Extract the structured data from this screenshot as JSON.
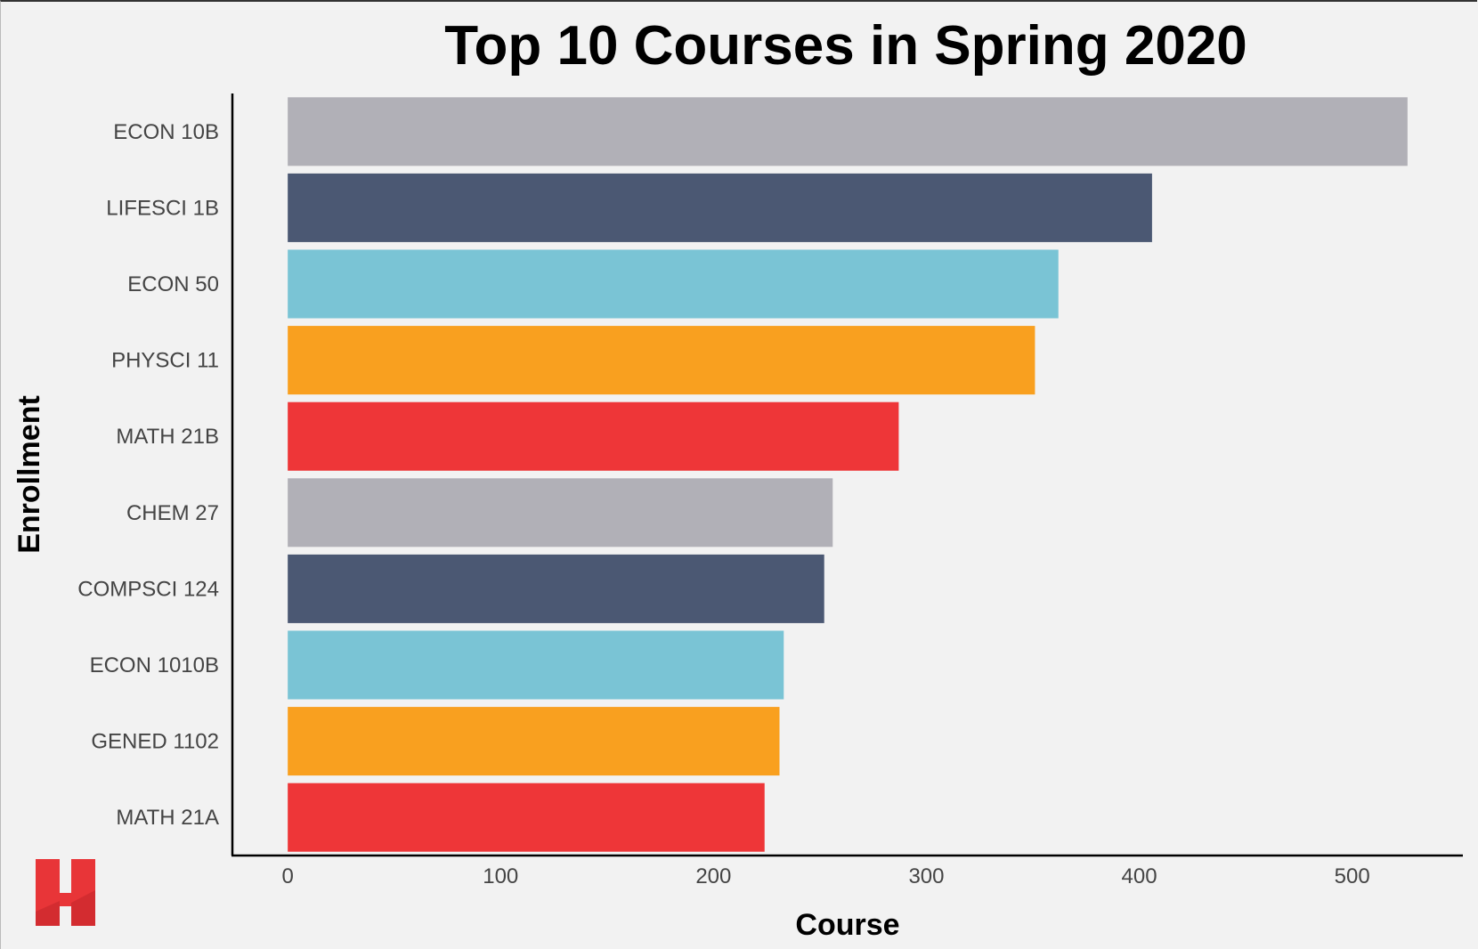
{
  "chart_data": {
    "type": "bar",
    "orientation": "horizontal",
    "title": "Top 10 Courses in Spring 2020",
    "xlabel": "Course",
    "ylabel": "Enrollment",
    "categories": [
      "ECON 10B",
      "LIFESCI 1B",
      "ECON 50",
      "PHYSCI 11",
      "MATH 21B",
      "CHEM 27",
      "COMPSCI 124",
      "ECON 1010B",
      "GENED 1102",
      "MATH 21A"
    ],
    "values": [
      526,
      406,
      362,
      351,
      287,
      256,
      252,
      233,
      231,
      224
    ],
    "bar_colors": [
      "#b1b0b7",
      "#4b5873",
      "#7ac4d5",
      "#f9a01f",
      "#ee3638",
      "#b1b0b7",
      "#4b5873",
      "#7ac4d5",
      "#f9a01f",
      "#ee3638"
    ],
    "xlim": [
      -26,
      552
    ],
    "xticks": [
      0,
      100,
      200,
      300,
      400,
      500
    ],
    "grid": false,
    "legend": "none"
  },
  "logo": {
    "name": "harvard-h-logo",
    "colors": {
      "main": "#e83538",
      "shade": "#c4262b"
    }
  }
}
